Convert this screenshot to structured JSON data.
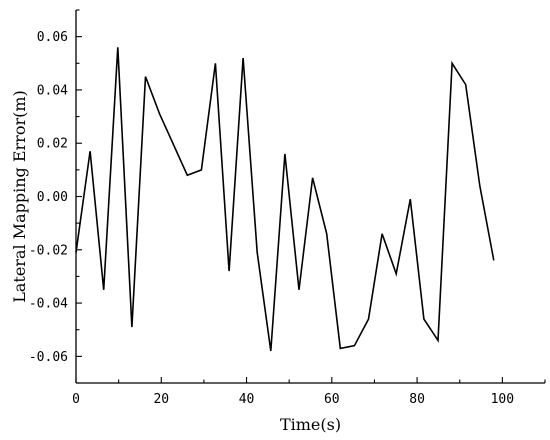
{
  "chart_data": {
    "type": "line",
    "title": "",
    "xlabel": "Time(s)",
    "ylabel": "Lateral Mapping Error(m)",
    "xlim": [
      0,
      110
    ],
    "ylim": [
      -0.07,
      0.07
    ],
    "x_ticks": [
      0,
      20,
      40,
      60,
      80,
      100
    ],
    "x_tick_labels": [
      "0",
      "20",
      "40",
      "60",
      "80",
      "100"
    ],
    "y_ticks": [
      -0.06,
      -0.04,
      -0.02,
      0.0,
      0.02,
      0.04,
      0.06
    ],
    "y_tick_labels": [
      "-0.06",
      "-0.04",
      "-0.02",
      "0.00",
      "0.02",
      "0.04",
      "0.06"
    ],
    "grid": false,
    "legend": "none",
    "series": [
      {
        "color": "#000000",
        "x": [
          0,
          3.3,
          6.5,
          9.8,
          13.1,
          16.3,
          19.6,
          26.1,
          29.4,
          32.7,
          35.9,
          39.2,
          42.5,
          45.7,
          49.0,
          52.3,
          55.5,
          58.8,
          62.0,
          65.3,
          68.6,
          71.8,
          75.1,
          78.4,
          81.6,
          84.9,
          88.2,
          91.4,
          94.7,
          98.0
        ],
        "y": [
          -0.021,
          0.017,
          -0.035,
          0.056,
          -0.049,
          0.045,
          0.031,
          0.008,
          0.01,
          0.05,
          -0.028,
          0.052,
          -0.021,
          -0.058,
          0.016,
          -0.035,
          0.007,
          -0.014,
          -0.057,
          -0.056,
          -0.046,
          -0.014,
          -0.029,
          -0.001,
          -0.046,
          -0.054,
          0.05,
          0.042,
          0.004,
          -0.024
        ]
      }
    ]
  }
}
